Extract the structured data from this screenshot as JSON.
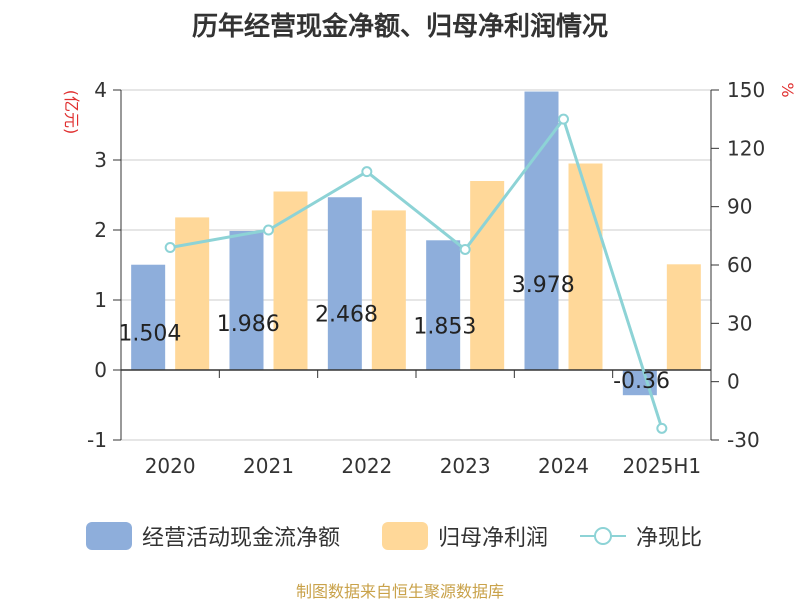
{
  "title": "历年经营现金净额、归母净利润情况",
  "footer": "制图数据来自恒生聚源数据库",
  "colors": {
    "bar1": "#8eaedb",
    "bar2": "#ffd899",
    "line": "#8dd3d6",
    "axis_unit": "#e03030",
    "axis": "#333333",
    "grid": "#cccccc"
  },
  "chart_data": {
    "type": "bar",
    "title": "历年经营现金净额、归母净利润情况",
    "categories": [
      "2020",
      "2021",
      "2022",
      "2023",
      "2024",
      "2025H1"
    ],
    "y_left_label": "(亿元)",
    "y_right_label": "%",
    "y_left_range": [
      -1,
      4
    ],
    "y_left_ticks": [
      "-1",
      "0",
      "1",
      "2",
      "3",
      "4"
    ],
    "y_right_range": [
      -30,
      150
    ],
    "y_right_ticks": [
      "-30",
      "0",
      "30",
      "60",
      "90",
      "120",
      "150"
    ],
    "grid": true,
    "legend_position": "bottom",
    "series": [
      {
        "name": "经营活动现金流净额",
        "kind": "bar",
        "axis": "left",
        "values": [
          1.504,
          1.986,
          2.468,
          1.853,
          3.978,
          -0.36
        ],
        "labels": [
          "1.504",
          "1.986",
          "2.468",
          "1.853",
          "3.978",
          "-0.36"
        ]
      },
      {
        "name": "归母净利润",
        "kind": "bar",
        "axis": "left",
        "values": [
          2.18,
          2.55,
          2.28,
          2.7,
          2.95,
          1.51
        ]
      },
      {
        "name": "净现比",
        "kind": "line",
        "axis": "right",
        "values": [
          69,
          78,
          108,
          68,
          135,
          -24
        ]
      }
    ]
  }
}
